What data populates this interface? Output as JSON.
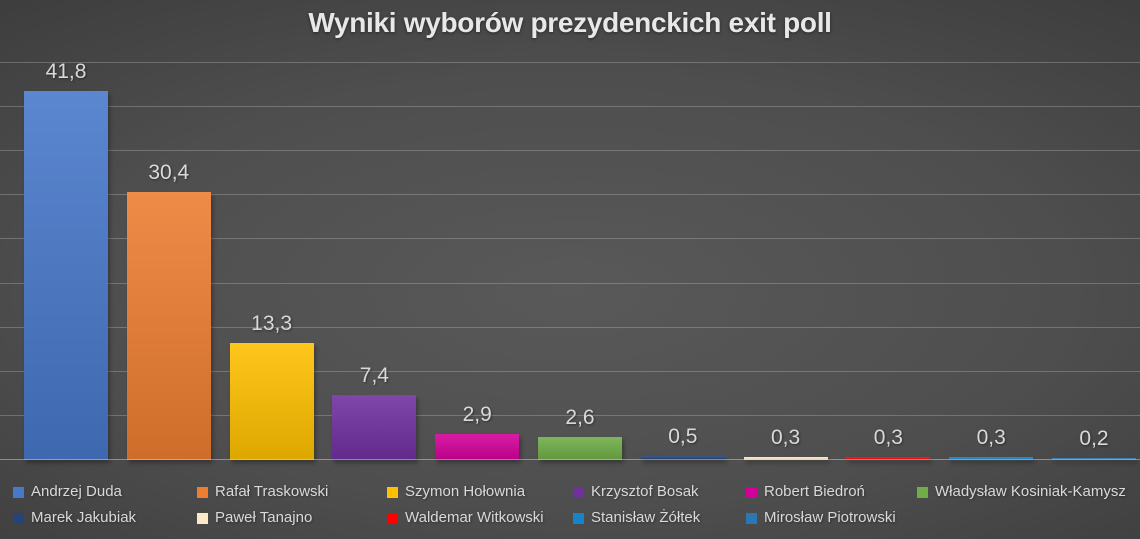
{
  "chart_data": {
    "type": "bar",
    "title": "Wyniki wyborów prezydenckich exit poll",
    "categories": [
      "Andrzej Duda",
      "Rafał Traskowski",
      "Szymon Hołownia",
      "Krzysztof Bosak",
      "Robert Biedroń",
      "Władysław Kosiniak-Kamysz",
      "Marek Jakubiak",
      "Paweł Tanajno",
      "Waldemar Witkowski",
      "Stanisław Żółtek",
      "Mirosław Piotrowski"
    ],
    "values": [
      41.8,
      30.4,
      13.3,
      7.4,
      2.9,
      2.6,
      0.5,
      0.3,
      0.3,
      0.3,
      0.2
    ],
    "value_labels": [
      "41,8",
      "30,4",
      "13,3",
      "7,4",
      "2,9",
      "2,6",
      "0,5",
      "0,3",
      "0,3",
      "0,3",
      "0,2"
    ],
    "series_colors": [
      "#4778CA",
      "#ED7D31",
      "#FFC000",
      "#7030A0",
      "#D4009B",
      "#70AD47",
      "#264478",
      "#FFE8C7",
      "#FF0000",
      "#1584C8",
      "#2E75B6"
    ],
    "xlabel": "",
    "ylabel": "",
    "ylim": [
      0,
      45
    ],
    "gridline_step": 5,
    "grid": "horizontal gridlines only, no axis tick labels",
    "legend_position": "bottom, two rows (6 + 5 entries)"
  },
  "style": {
    "title_color": "#E8E8E8",
    "data_label_color": "#D9D9D9",
    "legend_text_color": "#D9D9D9",
    "background_center": "#595959",
    "background_edge": "#2C2C2C",
    "gridline_color": "#727272"
  }
}
